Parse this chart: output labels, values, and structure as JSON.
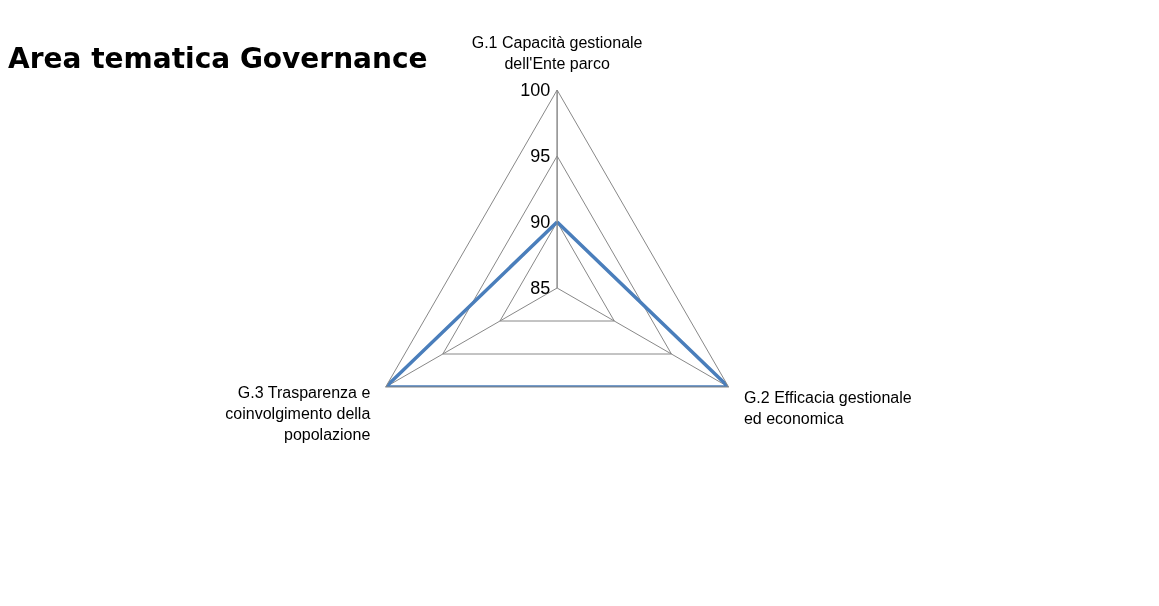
{
  "chart_data": {
    "type": "radar",
    "title": "Area tematica Governance",
    "categories": [
      "G.1 Capacità gestionale\ndell'Ente parco",
      "G.2 Efficacia gestionale\ned economica",
      "G.3 Trasparenza e\ncoinvolgimento della\npopolazione"
    ],
    "series": [
      {
        "color": "#4a7ebb",
        "values": [
          90,
          100,
          100
        ]
      }
    ],
    "ylim": [
      85,
      100
    ],
    "yticks": [
      85,
      90,
      95,
      100
    ],
    "grid": true,
    "legend": false,
    "marker": "none",
    "line_style": "solid"
  }
}
